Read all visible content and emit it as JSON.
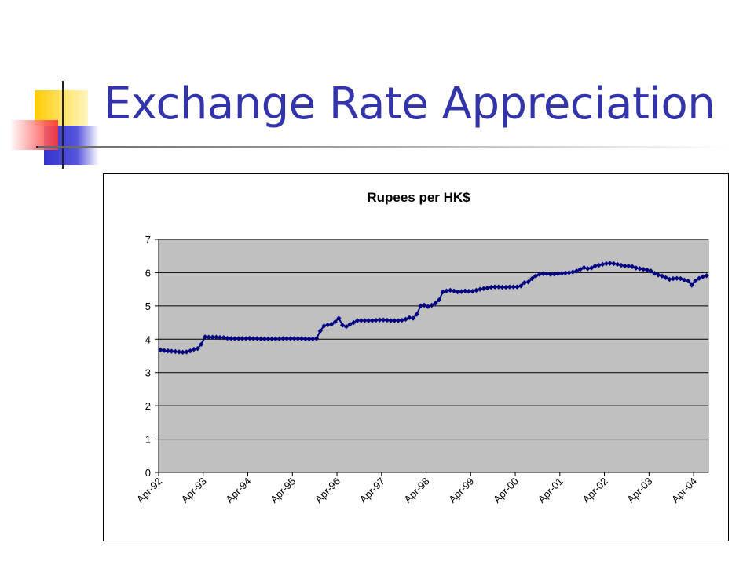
{
  "slide": {
    "title": "Exchange Rate Appreciation"
  },
  "chart_data": {
    "type": "line",
    "title": "Rupees per HK$",
    "xlabel": "",
    "ylabel": "",
    "ylim": [
      0,
      7
    ],
    "yticks": [
      0,
      1,
      2,
      3,
      4,
      5,
      6,
      7
    ],
    "x_tick_labels": [
      "Apr-92",
      "Apr-93",
      "Apr-94",
      "Apr-95",
      "Apr-96",
      "Apr-97",
      "Apr-98",
      "Apr-99",
      "Apr-00",
      "Apr-01",
      "Apr-02",
      "Apr-03",
      "Apr-04"
    ],
    "grid": "horizontal",
    "legend": "none",
    "plot_background": "#c0c0c0",
    "series_color": "#000080",
    "x_start": "Apr-92",
    "frequency": "monthly",
    "series": [
      {
        "values": [
          3.68,
          3.66,
          3.65,
          3.64,
          3.63,
          3.62,
          3.61,
          3.62,
          3.65,
          3.7,
          3.72,
          3.85,
          4.07,
          4.06,
          4.06,
          4.06,
          4.05,
          4.05,
          4.03,
          4.02,
          4.02,
          4.02,
          4.02,
          4.02,
          4.03,
          4.02,
          4.02,
          4.01,
          4.01,
          4.01,
          4.01,
          4.01,
          4.01,
          4.02,
          4.02,
          4.02,
          4.02,
          4.02,
          4.02,
          4.01,
          4.01,
          4.01,
          4.02,
          4.25,
          4.4,
          4.43,
          4.45,
          4.52,
          4.63,
          4.42,
          4.38,
          4.45,
          4.5,
          4.56,
          4.56,
          4.56,
          4.56,
          4.56,
          4.57,
          4.58,
          4.58,
          4.57,
          4.56,
          4.56,
          4.56,
          4.57,
          4.6,
          4.65,
          4.63,
          4.75,
          5.0,
          5.02,
          4.98,
          5.02,
          5.08,
          5.18,
          5.42,
          5.45,
          5.47,
          5.45,
          5.42,
          5.43,
          5.45,
          5.44,
          5.44,
          5.47,
          5.5,
          5.52,
          5.54,
          5.56,
          5.57,
          5.57,
          5.56,
          5.56,
          5.57,
          5.57,
          5.57,
          5.6,
          5.7,
          5.72,
          5.82,
          5.9,
          5.95,
          5.97,
          5.97,
          5.95,
          5.96,
          5.97,
          5.98,
          5.99,
          6.0,
          6.02,
          6.05,
          6.1,
          6.15,
          6.12,
          6.14,
          6.2,
          6.22,
          6.25,
          6.27,
          6.28,
          6.27,
          6.25,
          6.22,
          6.2,
          6.2,
          6.18,
          6.14,
          6.12,
          6.1,
          6.08,
          6.05,
          5.98,
          5.93,
          5.9,
          5.85,
          5.8,
          5.82,
          5.83,
          5.82,
          5.78,
          5.75,
          5.62,
          5.75,
          5.83,
          5.88,
          5.91
        ]
      }
    ]
  }
}
